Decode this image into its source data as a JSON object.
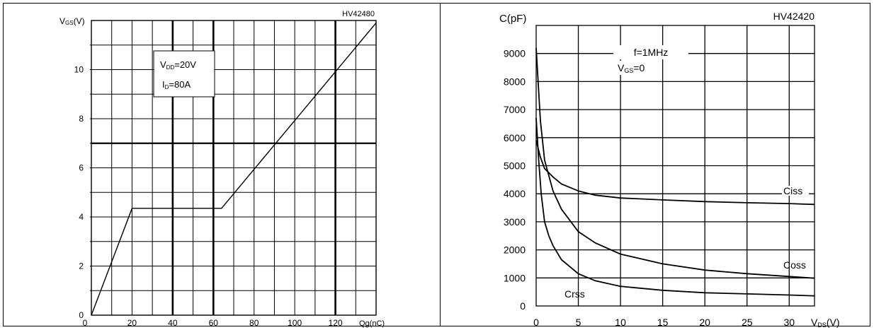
{
  "chart_data": [
    {
      "type": "line",
      "title": "HV42480",
      "ylabel_main": "V",
      "ylabel_sub": "GS",
      "ylabel_unit": "(V)",
      "xlabel": "Qg(nC)",
      "xlim": [
        0,
        140
      ],
      "ylim": [
        0,
        12
      ],
      "x_ticks": [
        0,
        20,
        40,
        60,
        80,
        100,
        120
      ],
      "y_ticks": [
        0,
        2,
        4,
        6,
        8,
        10
      ],
      "grid": true,
      "annotations": [
        {
          "main": "V",
          "sub": "DD",
          "rest": "=20V"
        },
        {
          "main": "I",
          "sub": "D",
          "rest": "=80A"
        }
      ],
      "series": [
        {
          "x": [
            0,
            20,
            64,
            140
          ],
          "y": [
            0,
            4.35,
            4.35,
            11.9
          ]
        }
      ]
    },
    {
      "type": "line",
      "title": "HV42420",
      "ylabel": "C(pF)",
      "xlabel_main": "V",
      "xlabel_sub": "DS",
      "xlabel_unit": "(V)",
      "xlim": [
        0,
        33
      ],
      "ylim": [
        0,
        10000
      ],
      "x_ticks": [
        0,
        5,
        10,
        15,
        20,
        25,
        30
      ],
      "y_ticks": [
        0,
        1000,
        2000,
        3000,
        4000,
        5000,
        6000,
        7000,
        8000,
        9000
      ],
      "grid": true,
      "annotations": [
        {
          "text": "f=1MHz"
        },
        {
          "main": "V",
          "sub": "GS",
          "rest": "=0"
        }
      ],
      "series": [
        {
          "name": "Ciss",
          "x": [
            0,
            0.5,
            1,
            2,
            3,
            5,
            7,
            10,
            15,
            20,
            25,
            30,
            33
          ],
          "y": [
            5900,
            5300,
            4900,
            4600,
            4350,
            4100,
            3950,
            3850,
            3780,
            3720,
            3680,
            3650,
            3620
          ]
        },
        {
          "name": "Coss",
          "x": [
            0,
            0.5,
            1,
            2,
            3,
            5,
            7,
            10,
            15,
            20,
            25,
            30,
            33
          ],
          "y": [
            9200,
            6600,
            5200,
            4100,
            3450,
            2650,
            2250,
            1850,
            1500,
            1280,
            1150,
            1050,
            990
          ]
        },
        {
          "name": "Crss",
          "x": [
            0,
            0.3,
            0.6,
            1,
            1.5,
            2,
            3,
            5,
            7,
            10,
            15,
            20,
            25,
            30,
            33
          ],
          "y": [
            6700,
            5200,
            4000,
            3000,
            2500,
            2150,
            1650,
            1150,
            900,
            700,
            560,
            470,
            430,
            390,
            360
          ]
        }
      ]
    }
  ]
}
